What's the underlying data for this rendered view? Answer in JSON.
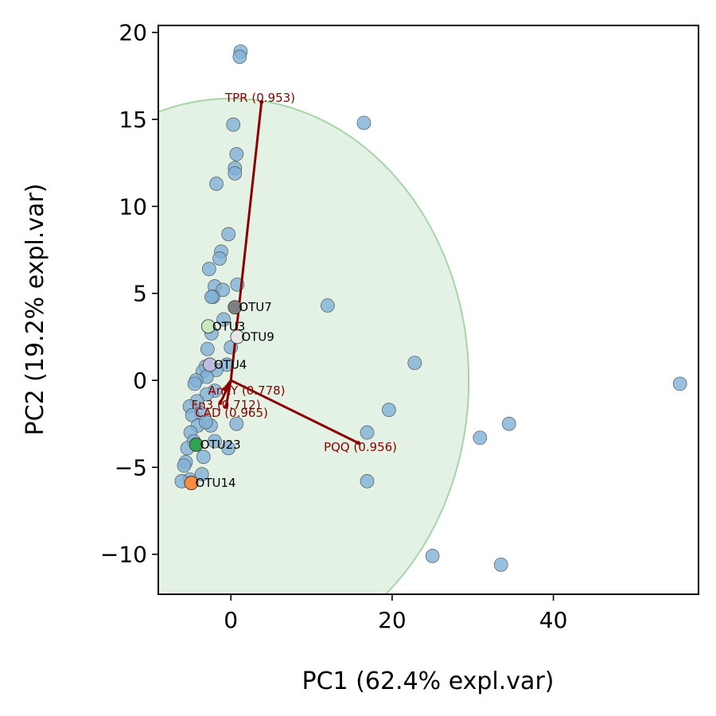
{
  "chart_data": {
    "type": "scatter",
    "xlabel": "PC1 (62.4% expl.var)",
    "ylabel": "PC2 (19.2% expl.var)",
    "xlim": [
      -9,
      58
    ],
    "ylim": [
      -12.3,
      20.4
    ],
    "xticks": [
      0,
      20,
      40
    ],
    "yticks": [
      -10,
      -5,
      0,
      5,
      10,
      15,
      20
    ],
    "x_tick_labels": [
      "0",
      "20",
      "40"
    ],
    "y_tick_labels": [
      "−10",
      "−5",
      "0",
      "5",
      "10",
      "15",
      "20"
    ],
    "grid": false,
    "ellipse": {
      "cx": 0,
      "cy": 0,
      "rx": 29.5,
      "ry": 16.2,
      "color": "#c8e6c9"
    },
    "point_color": "#7fb0d6",
    "points": [
      [
        1.2,
        18.9
      ],
      [
        1.1,
        18.6
      ],
      [
        16.5,
        14.8
      ],
      [
        0.3,
        14.7
      ],
      [
        0.7,
        13.0
      ],
      [
        0.5,
        12.2
      ],
      [
        0.5,
        11.9
      ],
      [
        -1.8,
        11.3
      ],
      [
        -0.3,
        8.4
      ],
      [
        -1.2,
        7.4
      ],
      [
        -1.4,
        7.0
      ],
      [
        -2.7,
        6.4
      ],
      [
        0.8,
        5.5
      ],
      [
        -2.0,
        5.4
      ],
      [
        -1.0,
        5.2
      ],
      [
        -2.2,
        4.8
      ],
      [
        -2.4,
        4.8
      ],
      [
        12.0,
        4.3
      ],
      [
        -0.9,
        3.5
      ],
      [
        -2.4,
        2.7
      ],
      [
        0.0,
        1.9
      ],
      [
        -2.9,
        1.8
      ],
      [
        22.8,
        1.0
      ],
      [
        -0.5,
        0.9
      ],
      [
        -3.1,
        0.8
      ],
      [
        -1.8,
        0.6
      ],
      [
        -3.5,
        0.5
      ],
      [
        -3.0,
        0.2
      ],
      [
        -4.3,
        0.0
      ],
      [
        -4.5,
        -0.2
      ],
      [
        -2.0,
        -0.6
      ],
      [
        -3.0,
        -0.8
      ],
      [
        -4.2,
        -1.2
      ],
      [
        -5.1,
        -1.5
      ],
      [
        -3.7,
        -1.9
      ],
      [
        -4.8,
        -2.0
      ],
      [
        19.6,
        -1.7
      ],
      [
        -2.5,
        -2.6
      ],
      [
        -4.1,
        -2.6
      ],
      [
        -3.1,
        -2.4
      ],
      [
        0.7,
        -2.5
      ],
      [
        -5.0,
        -3.0
      ],
      [
        -4.6,
        -3.5
      ],
      [
        -2.0,
        -3.5
      ],
      [
        -5.4,
        -3.9
      ],
      [
        -0.3,
        -3.9
      ],
      [
        16.9,
        -3.0
      ],
      [
        30.9,
        -3.3
      ],
      [
        34.5,
        -2.5
      ],
      [
        55.7,
        -0.2
      ],
      [
        -3.4,
        -4.4
      ],
      [
        -5.6,
        -4.7
      ],
      [
        -5.8,
        -4.9
      ],
      [
        -3.6,
        -5.4
      ],
      [
        -5.1,
        -5.7
      ],
      [
        -6.1,
        -5.8
      ],
      [
        -4.9,
        -5.9
      ],
      [
        16.9,
        -5.8
      ],
      [
        25.0,
        -10.1
      ],
      [
        33.5,
        -10.6
      ]
    ],
    "vectors": [
      {
        "label": "TPR (0.953)",
        "x": 3.8,
        "y": 16.0
      },
      {
        "label": "PQQ (0.956)",
        "x": 15.8,
        "y": -3.6
      },
      {
        "label": "AnkY (0.778)",
        "x": -0.8,
        "y": -0.5
      },
      {
        "label": "Fn3 (0.712)",
        "x": -1.3,
        "y": -1.3
      },
      {
        "label": "CAD (0.965)",
        "x": -0.6,
        "y": -1.5
      }
    ],
    "vector_color": "#8b0000",
    "highlighted": [
      {
        "label": "OTU7",
        "x": 0.5,
        "y": 4.2,
        "color": "#808080"
      },
      {
        "label": "OTU3",
        "x": -2.8,
        "y": 3.1,
        "color": "#c7e9c0"
      },
      {
        "label": "OTU9",
        "x": 0.8,
        "y": 2.5,
        "color": "#e6e6e6"
      },
      {
        "label": "OTU4",
        "x": -2.6,
        "y": 0.9,
        "color": "#bcbddc"
      },
      {
        "label": "OTU23",
        "x": -4.3,
        "y": -3.7,
        "color": "#31a354"
      },
      {
        "label": "OTU14",
        "x": -4.9,
        "y": -5.9,
        "color": "#fd8d3c"
      }
    ]
  }
}
